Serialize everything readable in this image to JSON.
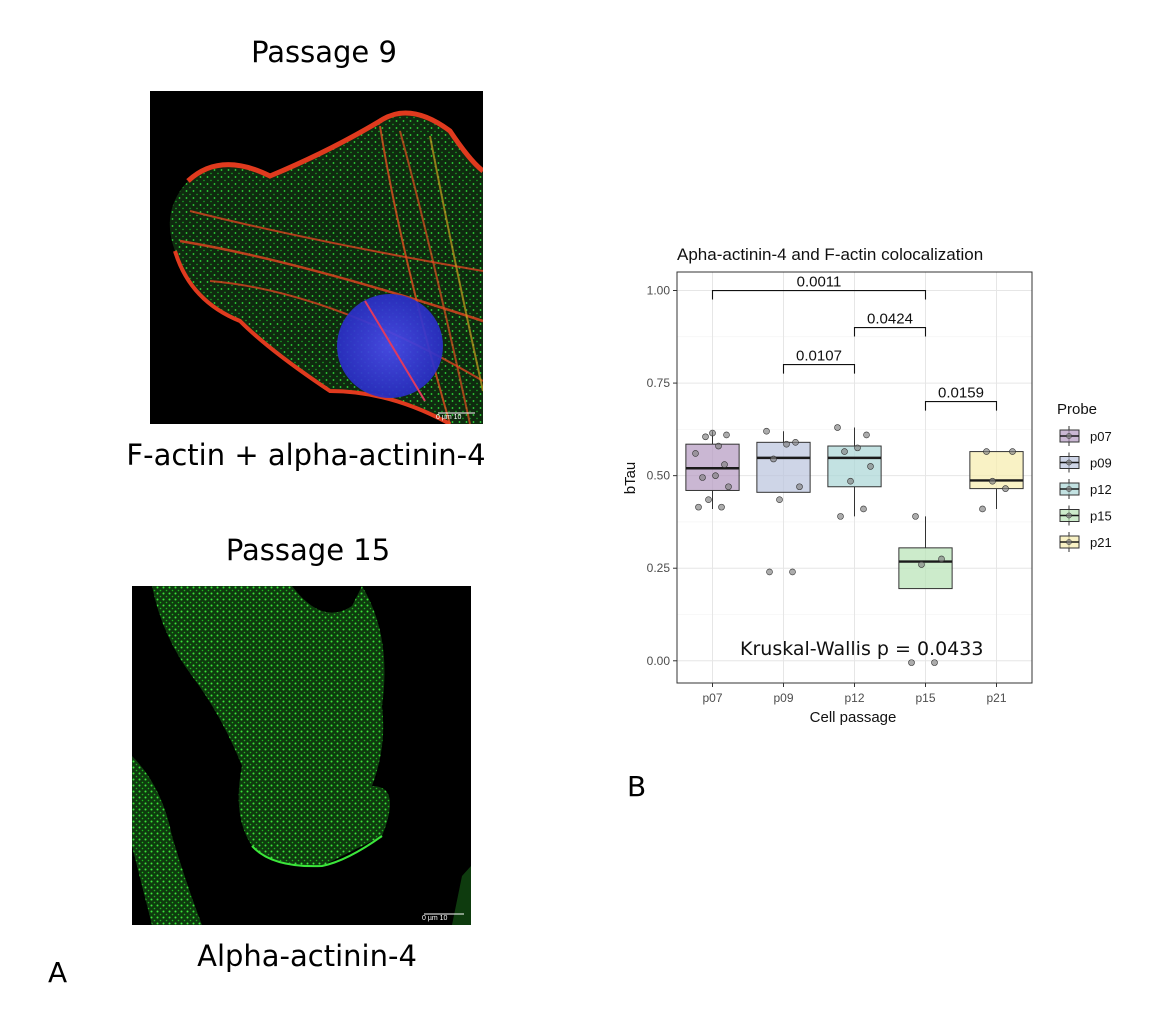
{
  "panel_a": {
    "letter": "A",
    "top_title": "Passage 9",
    "top_caption": "F-actin + alpha-actinin-4",
    "top_scale": "0  µm  10",
    "bottom_title": "Passage 15",
    "bottom_caption": "Alpha-actinin-4",
    "bottom_scale": "0  µm  10"
  },
  "panel_b": {
    "letter": "B"
  },
  "colors": {
    "p07": "#b399c1",
    "p09": "#b9c3dd",
    "p12": "#a9d6d5",
    "p15": "#b6e3b5",
    "p21": "#f7ecac",
    "grid": "#e6e6e6",
    "actin": "#e03a1e",
    "green": "#1fd02a",
    "nucleus": "#3a3fe0"
  },
  "chart_data": {
    "type": "box",
    "title": "Apha-actinin-4 and F-actin colocalization",
    "xlabel": "Cell passage",
    "ylabel": "bTau",
    "categories": [
      "p07",
      "p09",
      "p12",
      "p15",
      "p21"
    ],
    "ylim": [
      -0.06,
      1.05
    ],
    "yticks": [
      "0.00",
      "0.25",
      "0.50",
      "0.75",
      "1.00"
    ],
    "ytick_values": [
      0,
      0.25,
      0.5,
      0.75,
      1.0
    ],
    "grid": true,
    "legend": {
      "title": "Probe",
      "placement": "right",
      "entries": [
        "p07",
        "p09",
        "p12",
        "p15",
        "p21"
      ]
    },
    "boxes": [
      {
        "name": "p07",
        "q1": 0.46,
        "median": 0.52,
        "q3": 0.585,
        "whisker_low": 0.41,
        "whisker_high": 0.62
      },
      {
        "name": "p09",
        "q1": 0.455,
        "median": 0.548,
        "q3": 0.59,
        "whisker_low": 0.455,
        "whisker_high": 0.62
      },
      {
        "name": "p12",
        "q1": 0.47,
        "median": 0.548,
        "q3": 0.58,
        "whisker_low": 0.39,
        "whisker_high": 0.63
      },
      {
        "name": "p15",
        "q1": 0.195,
        "median": 0.268,
        "q3": 0.305,
        "whisker_low": 0.195,
        "whisker_high": 0.39
      },
      {
        "name": "p21",
        "q1": 0.465,
        "median": 0.487,
        "q3": 0.565,
        "whisker_low": 0.41,
        "whisker_high": 0.565
      }
    ],
    "points": [
      {
        "x": "p07",
        "y": [
          0.415,
          0.415,
          0.435,
          0.47,
          0.495,
          0.5,
          0.53,
          0.56,
          0.58,
          0.605,
          0.61,
          0.615
        ]
      },
      {
        "x": "p09",
        "y": [
          0.24,
          0.24,
          0.435,
          0.47,
          0.545,
          0.585,
          0.59,
          0.62
        ]
      },
      {
        "x": "p12",
        "y": [
          0.39,
          0.41,
          0.485,
          0.525,
          0.565,
          0.575,
          0.61,
          0.63
        ]
      },
      {
        "x": "p15",
        "y": [
          -0.005,
          -0.005,
          0.26,
          0.275,
          0.39
        ]
      },
      {
        "x": "p21",
        "y": [
          0.41,
          0.465,
          0.485,
          0.565,
          0.565
        ]
      }
    ],
    "comparisons": [
      {
        "from": "p07",
        "to": "p15",
        "y": 1.0,
        "label": "0.0011"
      },
      {
        "from": "p12",
        "to": "p15",
        "y": 0.9,
        "label": "0.0424"
      },
      {
        "from": "p09",
        "to": "p12",
        "y": 0.8,
        "label": "0.0107"
      },
      {
        "from": "p15",
        "to": "p21",
        "y": 0.7,
        "label": "0.0159"
      }
    ],
    "annotation": "Kruskal-Wallis p = 0.0433"
  }
}
